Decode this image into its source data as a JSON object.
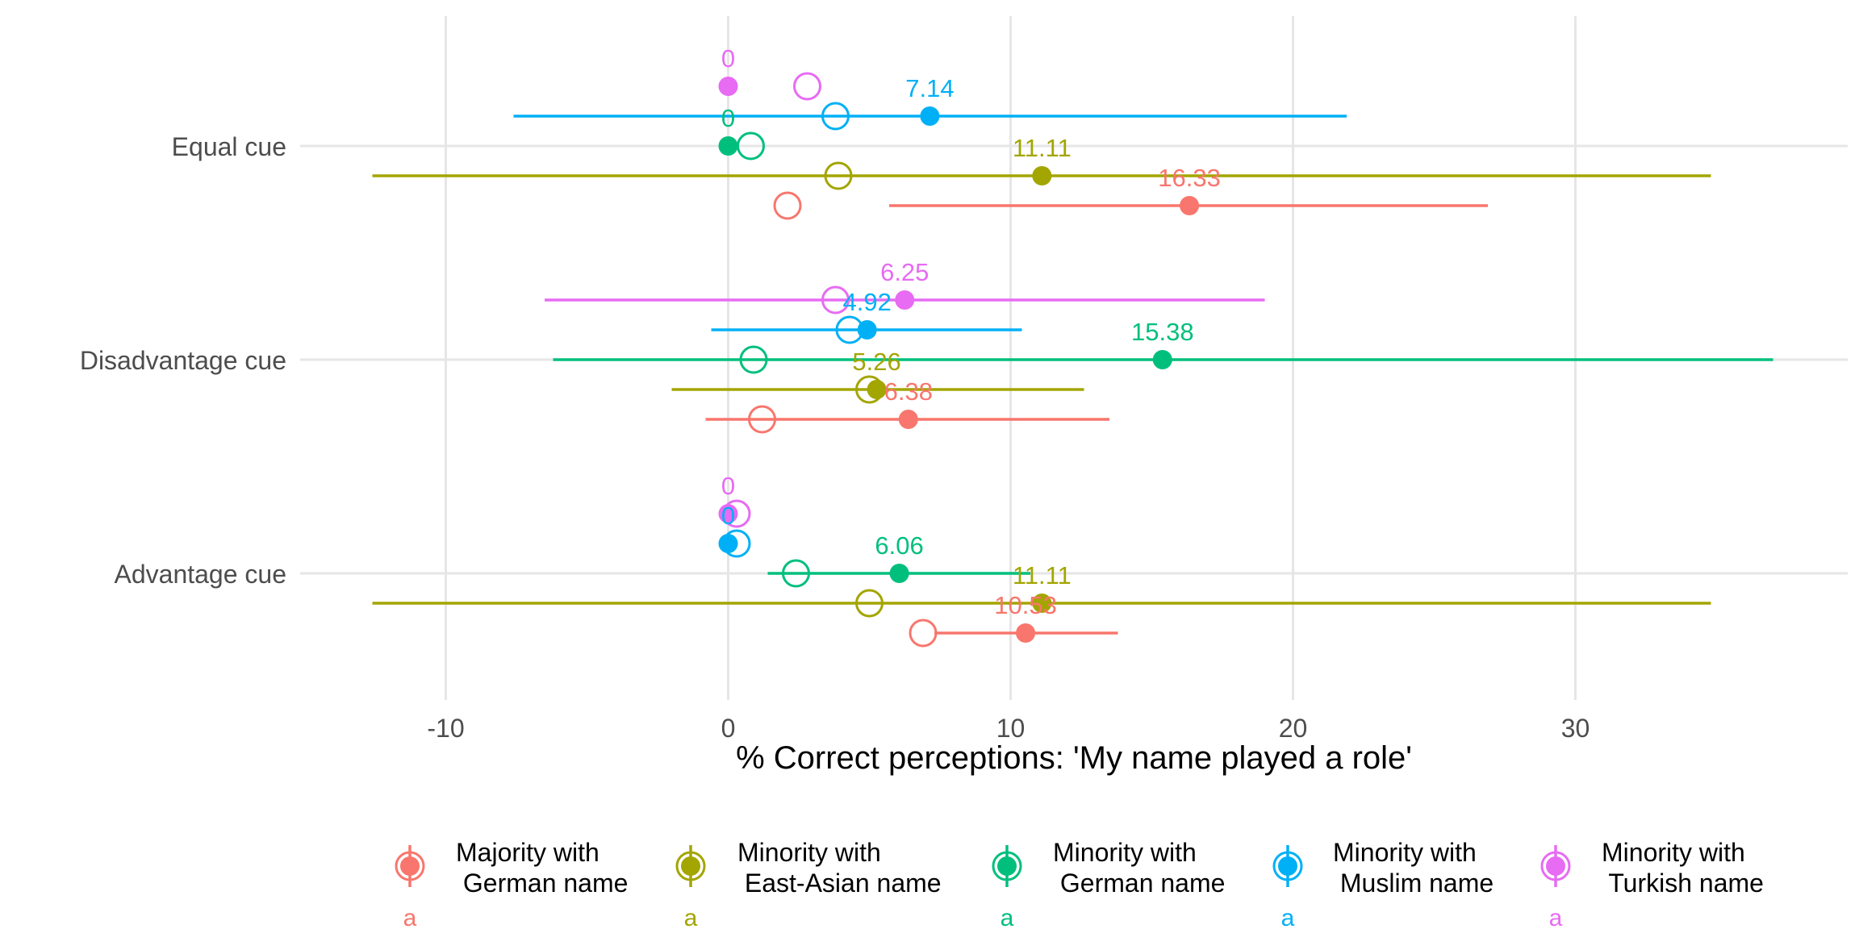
{
  "chart_data": {
    "type": "scatter",
    "xlabel": "% Correct perceptions: 'My name played a role'",
    "ylabel": "",
    "xlim": [
      -15.5,
      39.5
    ],
    "x_ticks": [
      -10,
      0,
      10,
      20,
      30
    ],
    "x_tick_labels": [
      "-10",
      "0",
      "10",
      "20",
      "30"
    ],
    "grid": true,
    "legend_position": "bottom",
    "categories": [
      "Equal cue",
      "Disadvantage cue",
      "Advantage cue"
    ],
    "series": [
      {
        "name": "Majority with\n German name",
        "color": "#F8766D",
        "legend_tag": "a",
        "points": [
          {
            "category": "Equal cue",
            "value": 16.33,
            "label": "16.33",
            "ci": [
              5.7,
              26.9
            ],
            "comparison": 2.1
          },
          {
            "category": "Disadvantage cue",
            "value": 6.38,
            "label": "6.38",
            "ci": [
              -0.8,
              13.5
            ],
            "comparison": 1.2
          },
          {
            "category": "Advantage cue",
            "value": 10.53,
            "label": "10.53",
            "ci": [
              7.3,
              13.8
            ],
            "comparison": 6.9
          }
        ]
      },
      {
        "name": "Minority with\n East-Asian name",
        "color": "#A3A500",
        "legend_tag": "a",
        "points": [
          {
            "category": "Equal cue",
            "value": 11.11,
            "label": "11.11",
            "ci": [
              -12.6,
              34.8
            ],
            "comparison": 3.9
          },
          {
            "category": "Disadvantage cue",
            "value": 5.26,
            "label": "5.26",
            "ci": [
              -2.0,
              12.6
            ],
            "comparison": 5.0
          },
          {
            "category": "Advantage cue",
            "value": 11.11,
            "label": "11.11",
            "ci": [
              -12.6,
              34.8
            ],
            "comparison": 5.0
          }
        ]
      },
      {
        "name": "Minority with\n German name",
        "color": "#00BF7D",
        "legend_tag": "a",
        "points": [
          {
            "category": "Equal cue",
            "value": 0,
            "label": "0",
            "ci": null,
            "comparison": 0.8
          },
          {
            "category": "Disadvantage cue",
            "value": 15.38,
            "label": "15.38",
            "ci": [
              -6.2,
              37.0
            ],
            "comparison": 0.9
          },
          {
            "category": "Advantage cue",
            "value": 6.06,
            "label": "6.06",
            "ci": [
              1.4,
              10.7
            ],
            "comparison": 2.4
          }
        ]
      },
      {
        "name": "Minority with\n Muslim name",
        "color": "#00B0F6",
        "legend_tag": "a",
        "points": [
          {
            "category": "Equal cue",
            "value": 7.14,
            "label": "7.14",
            "ci": [
              -7.6,
              21.9
            ],
            "comparison": 3.8
          },
          {
            "category": "Disadvantage cue",
            "value": 4.92,
            "label": "4.92",
            "ci": [
              -0.6,
              10.4
            ],
            "comparison": 4.3
          },
          {
            "category": "Advantage cue",
            "value": 0,
            "label": "0",
            "ci": null,
            "comparison": 0.3
          }
        ]
      },
      {
        "name": "Minority with\n Turkish name",
        "color": "#E76BF3",
        "legend_tag": "a",
        "points": [
          {
            "category": "Equal cue",
            "value": 0,
            "label": "0",
            "ci": null,
            "comparison": 2.8
          },
          {
            "category": "Disadvantage cue",
            "value": 6.25,
            "label": "6.25",
            "ci": [
              -6.5,
              19.0
            ],
            "comparison": 3.8
          },
          {
            "category": "Advantage cue",
            "value": 0,
            "label": "0",
            "ci": null,
            "comparison": 0.3
          }
        ]
      }
    ]
  }
}
